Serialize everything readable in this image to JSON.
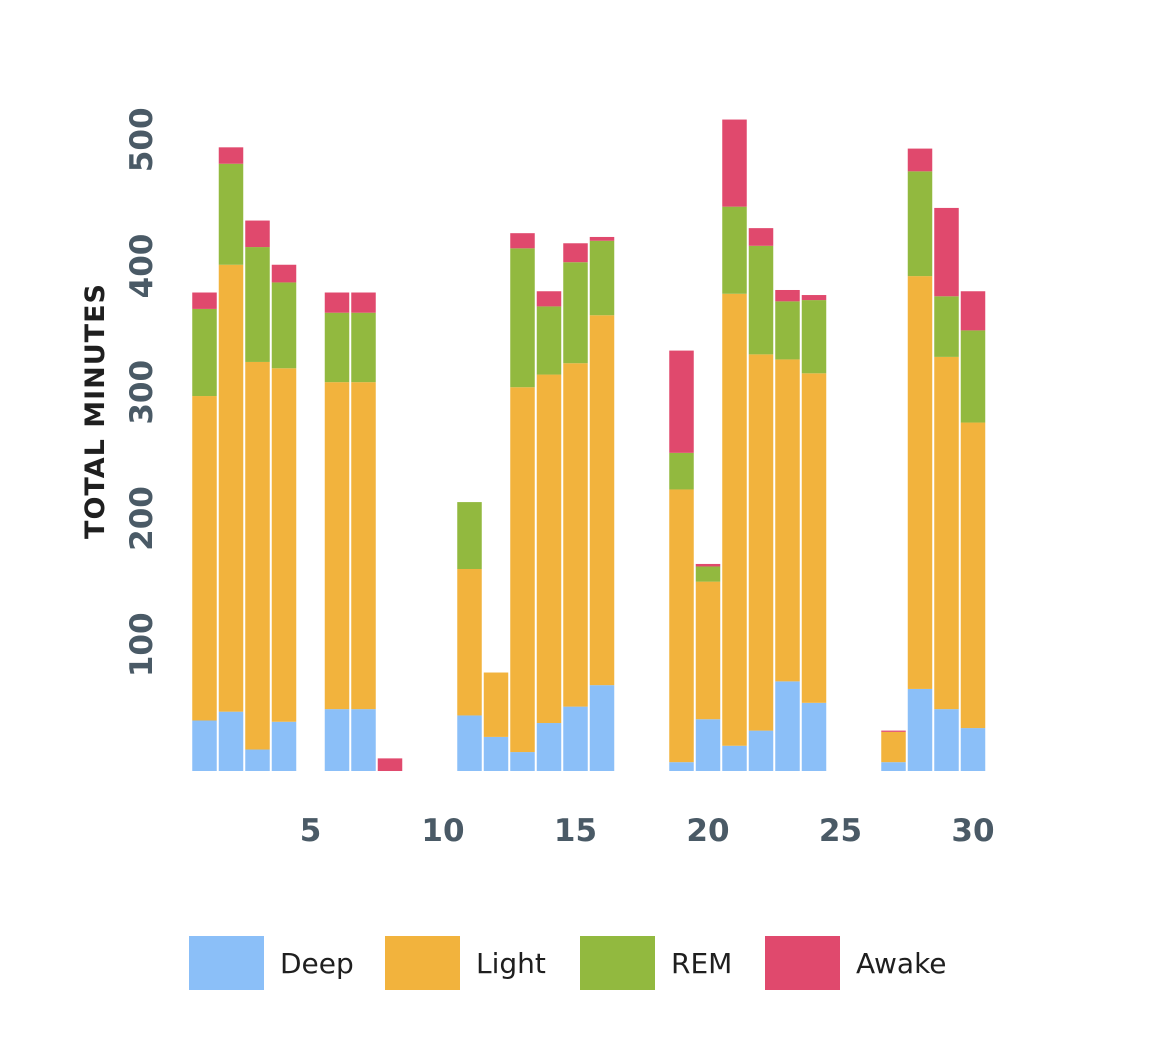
{
  "chart_data": {
    "type": "bar",
    "stacked": true,
    "ylabel": "TOTAL MINUTES",
    "xlabel": "",
    "ylim": [
      0,
      530
    ],
    "yticks": [
      100,
      200,
      300,
      400,
      500
    ],
    "xticks": [
      5,
      10,
      15,
      20,
      25,
      30
    ],
    "grid": false,
    "legend_position": "bottom",
    "x": [
      1,
      2,
      3,
      4,
      5,
      6,
      7,
      8,
      9,
      10,
      11,
      12,
      13,
      14,
      15,
      16,
      17,
      18,
      19,
      20,
      21,
      22,
      23,
      24,
      25,
      26,
      27,
      28,
      29,
      30
    ],
    "series": [
      {
        "name": "Deep",
        "color": "#8bbff8",
        "values": [
          40,
          47,
          17,
          39,
          0,
          49,
          49,
          0,
          0,
          0,
          44,
          27,
          15,
          38,
          51,
          68,
          0,
          0,
          7,
          41,
          20,
          32,
          71,
          54,
          0,
          0,
          7,
          65,
          49,
          34
        ]
      },
      {
        "name": "Light",
        "color": "#f2b33d",
        "values": [
          257,
          354,
          307,
          280,
          0,
          259,
          259,
          0,
          0,
          0,
          116,
          51,
          289,
          276,
          272,
          293,
          0,
          0,
          216,
          109,
          358,
          298,
          255,
          261,
          0,
          0,
          24,
          327,
          279,
          242
        ]
      },
      {
        "name": "REM",
        "color": "#92b93f",
        "values": [
          69,
          80,
          91,
          68,
          0,
          55,
          55,
          0,
          0,
          0,
          53,
          0,
          110,
          54,
          80,
          59,
          0,
          0,
          29,
          12,
          69,
          86,
          46,
          58,
          0,
          0,
          0,
          83,
          48,
          73
        ]
      },
      {
        "name": "Awake",
        "color": "#e0496d",
        "values": [
          13,
          13,
          21,
          14,
          0,
          16,
          16,
          10,
          0,
          0,
          0,
          0,
          12,
          12,
          15,
          3,
          0,
          0,
          81,
          2,
          69,
          14,
          9,
          4,
          0,
          0,
          1,
          18,
          70,
          31
        ]
      }
    ]
  }
}
